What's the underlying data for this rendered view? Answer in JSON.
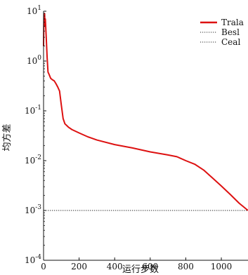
{
  "chart_data": {
    "type": "line",
    "title": "",
    "xlabel": "运行步数",
    "ylabel": "均方差",
    "xlim": [
      0,
      1150
    ],
    "ylim": [
      0.0001,
      10
    ],
    "yscale": "log",
    "x_ticks": [
      {
        "value": 0,
        "label": "0"
      },
      {
        "value": 200,
        "label": "200"
      },
      {
        "value": 400,
        "label": "400"
      },
      {
        "value": 600,
        "label": "600"
      },
      {
        "value": 800,
        "label": "800"
      },
      {
        "value": 1000,
        "label": "1000"
      }
    ],
    "y_ticks": [
      {
        "value": 10,
        "base": "10",
        "exp": "1"
      },
      {
        "value": 1,
        "base": "10",
        "exp": "0"
      },
      {
        "value": 0.1,
        "base": "10",
        "exp": "-1"
      },
      {
        "value": 0.01,
        "base": "10",
        "exp": "-2"
      },
      {
        "value": 0.001,
        "base": "10",
        "exp": "-3"
      },
      {
        "value": 0.0001,
        "base": "10",
        "exp": "-4"
      }
    ],
    "grid": false,
    "legend_position": "top-right",
    "series": [
      {
        "name": "Trala",
        "color": "#dd1111",
        "style": "solid",
        "x": [
          0,
          2,
          4,
          6,
          8,
          10,
          15,
          20,
          25,
          30,
          40,
          50,
          60,
          70,
          80,
          90,
          100,
          110,
          120,
          140,
          160,
          200,
          250,
          300,
          400,
          500,
          600,
          700,
          750,
          800,
          850,
          900,
          950,
          1000,
          1050,
          1100,
          1150
        ],
        "y": [
          2,
          8.5,
          6,
          9,
          5,
          7,
          3,
          1.2,
          0.6,
          0.55,
          0.45,
          0.42,
          0.4,
          0.35,
          0.3,
          0.25,
          0.13,
          0.07,
          0.055,
          0.047,
          0.042,
          0.036,
          0.03,
          0.026,
          0.021,
          0.018,
          0.015,
          0.013,
          0.012,
          0.01,
          0.0085,
          0.0065,
          0.0045,
          0.0031,
          0.0021,
          0.0014,
          0.001
        ]
      },
      {
        "name": "Besl",
        "color": "#2a2a2a",
        "style": "dotted",
        "x": [
          0,
          1150
        ],
        "y": [
          0.001,
          0.001
        ]
      },
      {
        "name": "Ceal",
        "color": "#2a2a2a",
        "style": "dotted",
        "x": [
          0,
          1150
        ],
        "y": [
          0.001,
          0.001
        ]
      }
    ]
  }
}
